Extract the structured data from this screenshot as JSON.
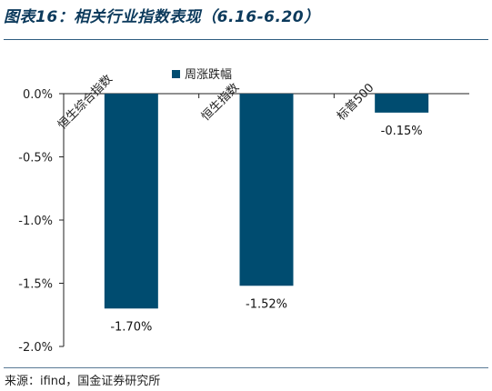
{
  "header": {
    "title": "图表16：相关行业指数表现（6.16-6.20）"
  },
  "footer": {
    "source": "来源：ifind，国金证券研究所"
  },
  "colors": {
    "bar": "#004c70",
    "title": "#0c3a5c"
  },
  "chart_data": {
    "type": "bar",
    "categories": [
      "恒生综合指数",
      "恒生指数",
      "标普500"
    ],
    "series": [
      {
        "name": "周涨跌幅",
        "values": [
          -1.7,
          -1.52,
          -0.15
        ]
      }
    ],
    "data_labels": [
      "-1.70%",
      "-1.52%",
      "-0.15%"
    ],
    "yticks": [
      "0.0%",
      "-0.5%",
      "-1.0%",
      "-1.5%",
      "-2.0%"
    ],
    "ylim": [
      -2.0,
      0.0
    ],
    "legend_position": "top",
    "grid": false
  }
}
